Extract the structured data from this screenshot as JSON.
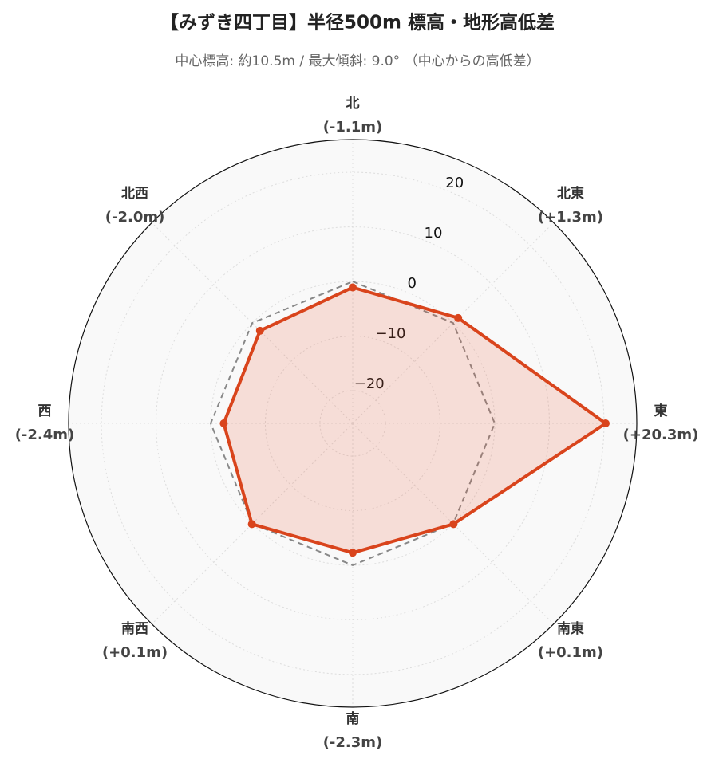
{
  "chart_data": {
    "type": "radar",
    "title": "【みずき四丁目】半径500m 標高・地形高低差",
    "subtitle": "中心標高: 約10.5m / 最大傾斜: 9.0° （中心からの高低差）",
    "categories": [
      "北",
      "北東",
      "東",
      "南東",
      "南",
      "南西",
      "西",
      "北西"
    ],
    "series": [
      {
        "color": "#d9441c",
        "fill": "rgba(232,96,60,0.18)",
        "values": [
          -1.1,
          1.3,
          20.3,
          0.1,
          -2.3,
          0.1,
          -2.4,
          -2.0
        ],
        "value_labels": [
          "(-1.1m)",
          "(+1.3m)",
          "(+20.3m)",
          "(+0.1m)",
          "(-2.3m)",
          "(+0.1m)",
          "(-2.4m)",
          "(-2.0m)"
        ]
      },
      {
        "color": "#888888",
        "dash": true,
        "values": [
          0,
          0,
          0,
          0,
          0,
          0,
          0,
          0
        ]
      }
    ],
    "ylim": [
      -26,
      26
    ],
    "yticks": [
      {
        "value": -20,
        "label": "−20"
      },
      {
        "value": -10,
        "label": "−10"
      },
      0,
      10,
      20
    ],
    "grid": true
  }
}
